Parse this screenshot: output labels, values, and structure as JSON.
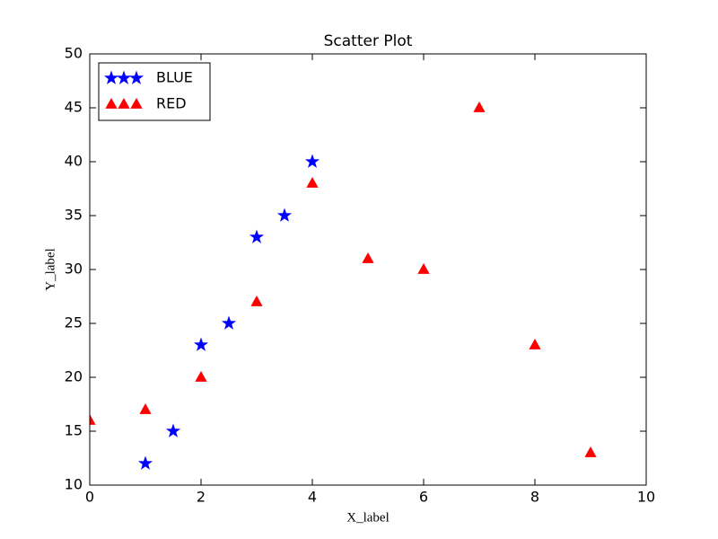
{
  "chart_data": {
    "type": "scatter",
    "title": "Scatter Plot",
    "x_label": "X_label",
    "y_label": "Y_label",
    "xlim": [
      0,
      10
    ],
    "ylim": [
      10,
      50
    ],
    "xticks": [
      0,
      2,
      4,
      6,
      8,
      10
    ],
    "yticks": [
      10,
      15,
      20,
      25,
      30,
      35,
      40,
      45,
      50
    ],
    "legend": "upper left",
    "series": [
      {
        "name": "BLUE",
        "color": "#0000ff",
        "marker": "star",
        "x": [
          1,
          1.5,
          2,
          2.5,
          3,
          3.5,
          4
        ],
        "values": [
          12,
          15,
          23,
          25,
          33,
          35,
          40
        ]
      },
      {
        "name": "RED",
        "color": "#ff0000",
        "marker": "triangle",
        "x": [
          0,
          1,
          2,
          3,
          4,
          5,
          6,
          7,
          8,
          9
        ],
        "values": [
          16,
          17,
          20,
          27,
          38,
          31,
          30,
          45,
          23,
          13
        ]
      }
    ]
  }
}
